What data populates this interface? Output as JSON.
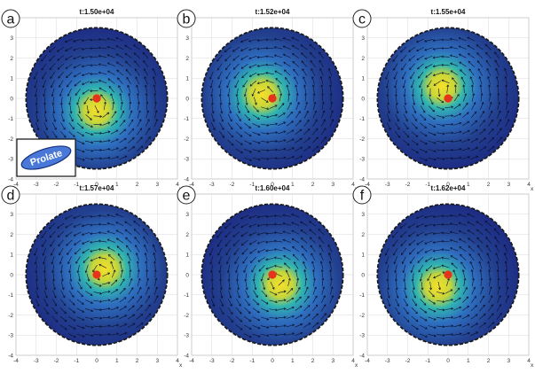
{
  "chart_data": [
    {
      "type": "scatter",
      "panel_letter": "a",
      "title": "t:1.50e+04",
      "xlabel": "x",
      "ylabel": "y",
      "xlim": [
        -4,
        4
      ],
      "ylim": [
        -4,
        4
      ],
      "xticks": [
        -4,
        -3,
        -2,
        -1,
        0,
        1,
        2,
        3,
        4
      ],
      "yticks": [
        -4,
        -3,
        -2,
        -1,
        0,
        1,
        2,
        3,
        4
      ],
      "grid": true,
      "disk_radius": 3.5,
      "hotspot": [
        0.0,
        -0.6
      ],
      "marker": [
        0.0,
        0.0
      ],
      "inset": {
        "label": "Prolate",
        "position": "bottom-left"
      }
    },
    {
      "type": "scatter",
      "panel_letter": "b",
      "title": "t:1.52e+04",
      "xlabel": "x",
      "ylabel": "y",
      "xlim": [
        -4,
        4
      ],
      "ylim": [
        -4,
        4
      ],
      "xticks": [
        -4,
        -3,
        -2,
        -1,
        0,
        1,
        2,
        3,
        4
      ],
      "yticks": [
        -4,
        -3,
        -2,
        -1,
        0,
        1,
        2,
        3,
        4
      ],
      "grid": true,
      "disk_radius": 3.5,
      "hotspot": [
        -0.5,
        0.2
      ],
      "marker": [
        0.0,
        0.0
      ]
    },
    {
      "type": "scatter",
      "panel_letter": "c",
      "title": "t:1.55e+04",
      "xlabel": "x",
      "ylabel": "y",
      "xlim": [
        -4,
        4
      ],
      "ylim": [
        -4,
        4
      ],
      "xticks": [
        -4,
        -3,
        -2,
        -1,
        0,
        1,
        2,
        3,
        4
      ],
      "yticks": [
        -4,
        -3,
        -2,
        -1,
        0,
        1,
        2,
        3,
        4
      ],
      "grid": true,
      "disk_radius": 3.5,
      "hotspot": [
        -0.3,
        0.6
      ],
      "marker": [
        0.0,
        0.0
      ]
    },
    {
      "type": "scatter",
      "panel_letter": "d",
      "title": "t:1.57e+04",
      "xlabel": "x",
      "ylabel": "y",
      "xlim": [
        -4,
        4
      ],
      "ylim": [
        -4,
        4
      ],
      "xticks": [
        -4,
        -3,
        -2,
        -1,
        0,
        1,
        2,
        3,
        4
      ],
      "yticks": [
        -4,
        -3,
        -2,
        -1,
        0,
        1,
        2,
        3,
        4
      ],
      "grid": true,
      "disk_radius": 3.5,
      "hotspot": [
        0.4,
        0.3
      ],
      "marker": [
        0.0,
        0.0
      ]
    },
    {
      "type": "scatter",
      "panel_letter": "e",
      "title": "t:1.60e+04",
      "xlabel": "x",
      "ylabel": "y",
      "xlim": [
        -4,
        4
      ],
      "ylim": [
        -4,
        4
      ],
      "xticks": [
        -4,
        -3,
        -2,
        -1,
        0,
        1,
        2,
        3,
        4
      ],
      "yticks": [
        -4,
        -3,
        -2,
        -1,
        0,
        1,
        2,
        3,
        4
      ],
      "grid": true,
      "disk_radius": 3.5,
      "hotspot": [
        0.4,
        -0.5
      ],
      "marker": [
        0.0,
        0.0
      ]
    },
    {
      "type": "scatter",
      "panel_letter": "f",
      "title": "t:1.62e+04",
      "xlabel": "x",
      "ylabel": "y",
      "xlim": [
        -4,
        4
      ],
      "ylim": [
        -4,
        4
      ],
      "xticks": [
        -4,
        -3,
        -2,
        -1,
        0,
        1,
        2,
        3,
        4
      ],
      "yticks": [
        -4,
        -3,
        -2,
        -1,
        0,
        1,
        2,
        3,
        4
      ],
      "grid": true,
      "disk_radius": 3.5,
      "hotspot": [
        -0.5,
        -0.6
      ],
      "marker": [
        0.0,
        0.0
      ]
    }
  ],
  "colors": {
    "field_low": "#1a237e",
    "field_mid": "#2f6fc0",
    "field_cyan": "#30b6b0",
    "field_high": "#f6e02a",
    "marker": "#e8331c",
    "arrow": "#0b0f2a",
    "inset_fill": "#4a78d8",
    "grid": "#d8d8d8"
  }
}
